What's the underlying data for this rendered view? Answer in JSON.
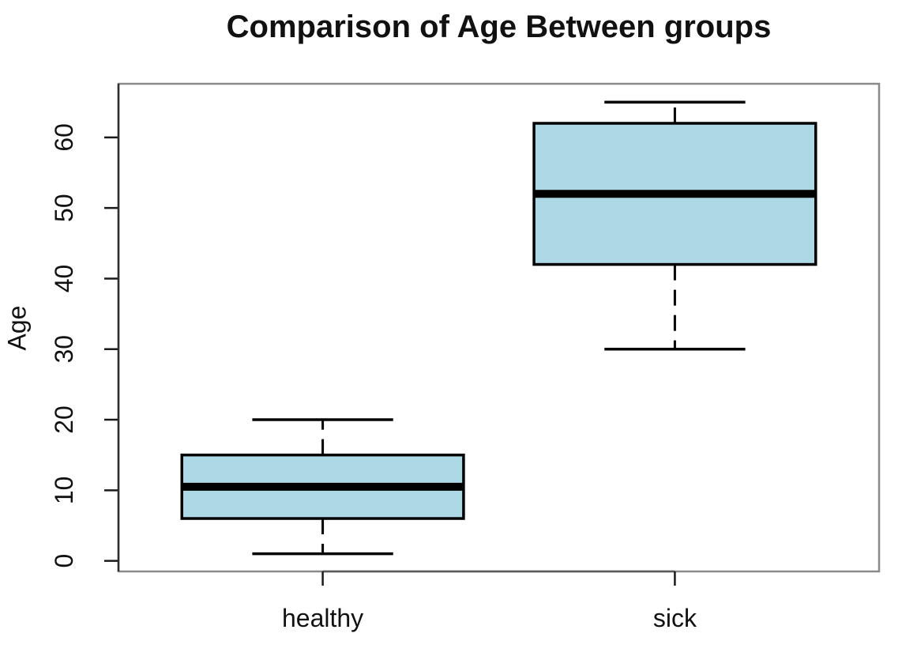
{
  "chart_data": {
    "type": "boxplot",
    "title": "Comparison of Age Between groups",
    "ylabel": "Age",
    "xlabel": "",
    "categories": [
      "healthy",
      "sick"
    ],
    "series": [
      {
        "name": "healthy",
        "whisker_low": 1,
        "q1": 6,
        "median": 10.5,
        "q3": 15,
        "whisker_high": 20
      },
      {
        "name": "sick",
        "whisker_low": 30,
        "q1": 42,
        "median": 52,
        "q3": 62,
        "whisker_high": 65
      }
    ],
    "yticks": [
      0,
      10,
      20,
      30,
      40,
      50,
      60
    ],
    "ylim": [
      -1.5,
      67.6
    ],
    "xlim": [
      0.42,
      2.58
    ],
    "box_width_units": 0.8,
    "cap_width_units": 0.4,
    "whisker_line_style": "dashed",
    "grid": false,
    "legend": null,
    "colors": {
      "box_fill": "#ADD8E6",
      "box_stroke": "#000000",
      "median": "#000000",
      "whisker": "#000000",
      "frame": "#8A8A8A",
      "axis_line": "#2E2E2E",
      "inner_axis": "#5A5A5A",
      "tick": "#1A1A1A",
      "text": "#111111",
      "background": "#FFFFFF"
    }
  }
}
